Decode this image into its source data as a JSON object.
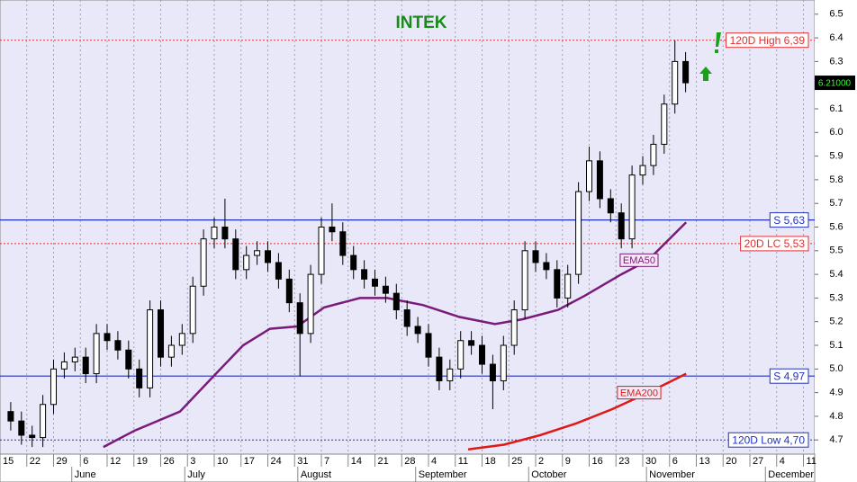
{
  "chart_data": {
    "type": "candlestick",
    "title": "INTEK",
    "x": [
      1,
      3,
      5,
      7,
      9,
      11,
      13,
      15,
      17,
      19,
      21,
      23,
      25,
      27,
      29,
      31,
      33,
      35,
      37,
      39,
      41,
      43,
      45,
      47,
      49,
      51,
      53,
      55,
      57,
      59,
      61,
      63,
      65,
      67,
      69,
      71,
      73,
      75,
      77,
      79,
      81,
      83,
      85,
      87,
      89,
      91,
      93,
      95,
      97,
      99,
      101,
      103,
      105,
      107,
      109,
      111,
      113,
      115,
      117,
      119,
      121,
      123,
      125,
      127
    ],
    "open": [
      4.82,
      4.78,
      4.72,
      4.71,
      4.85,
      5.0,
      5.03,
      5.05,
      4.98,
      5.15,
      5.12,
      5.08,
      5.0,
      4.92,
      5.25,
      5.05,
      5.1,
      5.15,
      5.35,
      5.55,
      5.6,
      5.55,
      5.42,
      5.48,
      5.5,
      5.45,
      5.38,
      5.28,
      5.15,
      5.4,
      5.6,
      5.58,
      5.48,
      5.42,
      5.38,
      5.35,
      5.32,
      5.25,
      5.18,
      5.15,
      5.05,
      4.95,
      5.0,
      5.12,
      5.1,
      5.02,
      4.95,
      5.1,
      5.25,
      5.5,
      5.45,
      5.42,
      5.3,
      5.4,
      5.75,
      5.88,
      5.72,
      5.66,
      5.55,
      5.82,
      5.86,
      5.95,
      6.12,
      6.3
    ],
    "high": [
      4.86,
      4.82,
      4.76,
      4.89,
      5.04,
      5.07,
      5.09,
      5.09,
      5.19,
      5.19,
      5.16,
      5.12,
      5.04,
      5.29,
      5.29,
      5.14,
      5.19,
      5.39,
      5.59,
      5.64,
      5.72,
      5.59,
      5.52,
      5.54,
      5.54,
      5.49,
      5.42,
      5.32,
      5.44,
      5.64,
      5.7,
      5.62,
      5.52,
      5.46,
      5.42,
      5.39,
      5.36,
      5.29,
      5.22,
      5.19,
      5.09,
      5.04,
      5.16,
      5.16,
      5.14,
      5.06,
      5.14,
      5.29,
      5.54,
      5.54,
      5.49,
      5.46,
      5.44,
      5.79,
      5.94,
      5.92,
      5.76,
      5.7,
      5.86,
      5.9,
      5.99,
      6.16,
      6.39,
      6.34
    ],
    "low": [
      4.74,
      4.68,
      4.67,
      4.67,
      4.81,
      4.96,
      4.99,
      4.94,
      4.94,
      5.08,
      5.04,
      4.96,
      4.88,
      4.88,
      5.01,
      5.01,
      5.06,
      5.11,
      5.31,
      5.51,
      5.51,
      5.38,
      5.38,
      5.44,
      5.41,
      5.34,
      5.24,
      4.97,
      5.11,
      5.36,
      5.54,
      5.44,
      5.38,
      5.34,
      5.31,
      5.28,
      5.21,
      5.14,
      5.11,
      5.01,
      4.91,
      4.91,
      4.96,
      5.06,
      4.98,
      4.83,
      4.91,
      5.06,
      5.21,
      5.41,
      5.38,
      5.26,
      5.26,
      5.36,
      5.71,
      5.68,
      5.62,
      5.51,
      5.51,
      5.78,
      5.82,
      5.91,
      6.08,
      6.17
    ],
    "close": [
      4.78,
      4.72,
      4.71,
      4.85,
      5.0,
      5.03,
      5.05,
      4.98,
      5.15,
      5.12,
      5.08,
      5.0,
      4.92,
      5.25,
      5.05,
      5.1,
      5.15,
      5.35,
      5.55,
      5.6,
      5.55,
      5.42,
      5.48,
      5.5,
      5.45,
      5.38,
      5.28,
      5.15,
      5.4,
      5.6,
      5.58,
      5.48,
      5.42,
      5.38,
      5.35,
      5.32,
      5.25,
      5.18,
      5.15,
      5.05,
      4.95,
      5.0,
      5.12,
      5.1,
      5.02,
      4.95,
      5.1,
      5.25,
      5.5,
      5.45,
      5.42,
      5.3,
      5.4,
      5.75,
      5.88,
      5.72,
      5.66,
      5.55,
      5.82,
      5.86,
      5.95,
      6.12,
      6.3,
      6.21
    ],
    "up_color": "#ffffff",
    "down_color": "#000000",
    "series": [
      {
        "name": "EMA50",
        "color": "#7a1a7a",
        "x": [
          18.3,
          24.2,
          32.6,
          39.3,
          44.4,
          49.4,
          54.5,
          59.5,
          66.2,
          71.3,
          78.0,
          84.7,
          91.4,
          96.5,
          103.2,
          108.2,
          115.0,
          120.0,
          127.1
        ],
        "values": [
          4.67,
          4.74,
          4.82,
          4.98,
          5.1,
          5.17,
          5.18,
          5.26,
          5.3,
          5.3,
          5.27,
          5.22,
          5.19,
          5.21,
          5.25,
          5.31,
          5.4,
          5.46,
          5.62
        ]
      },
      {
        "name": "EMA200",
        "color": "#e01818",
        "x": [
          86.4,
          93.1,
          99.8,
          106.6,
          113.3,
          120.0,
          127.1
        ],
        "values": [
          4.66,
          4.68,
          4.72,
          4.77,
          4.83,
          4.9,
          4.98
        ]
      }
    ],
    "levels": [
      {
        "label": "120D High 6,39",
        "value": 6.39,
        "color": "#e03030",
        "style": "dotted"
      },
      {
        "label": "S 5,63",
        "value": 5.63,
        "color": "#2030c0",
        "style": "solid"
      },
      {
        "label": "20D LC 5,53",
        "value": 5.53,
        "color": "#e03030",
        "style": "dotted"
      },
      {
        "label": "S 4,97",
        "value": 4.97,
        "color": "#2030c0",
        "style": "solid"
      },
      {
        "label": "120D Low 4,70",
        "value": 4.7,
        "color": "#2030c0",
        "style": "dotted"
      }
    ],
    "price_tag": {
      "value": 6.21,
      "label": "6.21000"
    },
    "xlim": [
      -1,
      151.1
    ],
    "ylim": [
      4.64,
      6.56
    ],
    "yticks": [
      6.5,
      6.4,
      6.3,
      6.2,
      6.1,
      {
        "value": 6.0,
        "label": "6.0"
      },
      5.9,
      5.8,
      5.7,
      5.6,
      5.5,
      5.4,
      5.3,
      5.2,
      5.1,
      {
        "value": 5.0,
        "label": "5.0"
      },
      4.9,
      4.8,
      4.7
    ],
    "xticks": [
      {
        "value": -1,
        "label": "15"
      },
      {
        "value": 4,
        "label": "22"
      },
      {
        "value": 9,
        "label": "29"
      },
      {
        "value": 14,
        "label": "6"
      },
      {
        "value": 19,
        "label": "12"
      },
      {
        "value": 24,
        "label": "19"
      },
      {
        "value": 29,
        "label": "26"
      },
      {
        "value": 34,
        "label": "3"
      },
      {
        "value": 39,
        "label": "10"
      },
      {
        "value": 44,
        "label": "17"
      },
      {
        "value": 49,
        "label": "24"
      },
      {
        "value": 54,
        "label": "31"
      },
      {
        "value": 59,
        "label": "7"
      },
      {
        "value": 64,
        "label": "14"
      },
      {
        "value": 69,
        "label": "21"
      },
      {
        "value": 74,
        "label": "28"
      },
      {
        "value": 79,
        "label": "4"
      },
      {
        "value": 84,
        "label": "11"
      },
      {
        "value": 89,
        "label": "18"
      },
      {
        "value": 94,
        "label": "25"
      },
      {
        "value": 99,
        "label": "2"
      },
      {
        "value": 104,
        "label": "9"
      },
      {
        "value": 109,
        "label": "16"
      },
      {
        "value": 114,
        "label": "23"
      },
      {
        "value": 119,
        "label": "30"
      },
      {
        "value": 124,
        "label": "6"
      },
      {
        "value": 129,
        "label": "13"
      },
      {
        "value": 134,
        "label": "20"
      },
      {
        "value": 139,
        "label": "27"
      },
      {
        "value": 144,
        "label": "4"
      },
      {
        "value": 149,
        "label": "11"
      }
    ],
    "month_ticks": [
      {
        "value": 12.4,
        "label": "June"
      },
      {
        "value": 33.5,
        "label": "July"
      },
      {
        "value": 54.6,
        "label": "August"
      },
      {
        "value": 76.6,
        "label": "September"
      },
      {
        "value": 97.7,
        "label": "October"
      },
      {
        "value": 119.7,
        "label": "November"
      },
      {
        "value": 141.9,
        "label": "December"
      }
    ],
    "grid": true
  }
}
